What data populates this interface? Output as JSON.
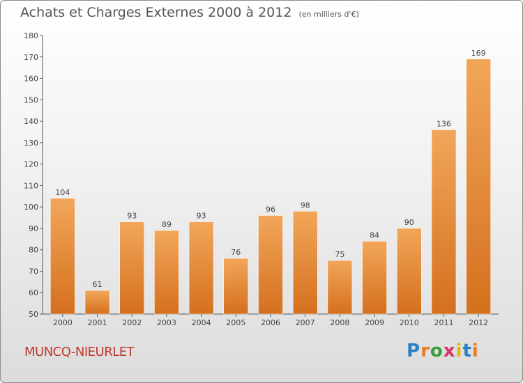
{
  "title": "Achats et Charges Externes 2000 à 2012",
  "unit": "(en milliers d'€)",
  "place": "MUNCQ-NIEURLET",
  "brand": {
    "text": "Proxiti",
    "letter_colors": [
      "#2b7fc4",
      "#e67e22",
      "#3a9d3a",
      "#d6336c",
      "#e6b800",
      "#2b7fc4",
      "#e67e22"
    ]
  },
  "colors": {
    "bar_top": "#f2a65a",
    "bar_bottom": "#d4701e",
    "axis": "#555555",
    "grid": "#cccccc"
  },
  "chart_data": {
    "type": "bar",
    "categories": [
      "2000",
      "2001",
      "2002",
      "2003",
      "2004",
      "2005",
      "2006",
      "2007",
      "2008",
      "2009",
      "2010",
      "2011",
      "2012"
    ],
    "values": [
      104,
      61,
      93,
      89,
      93,
      76,
      96,
      98,
      75,
      84,
      90,
      136,
      169
    ],
    "ylim": [
      50,
      180
    ],
    "yticks": [
      50,
      60,
      70,
      80,
      90,
      100,
      110,
      120,
      130,
      140,
      150,
      160,
      170,
      180
    ],
    "title": "Achats et Charges Externes 2000 à 2012",
    "xlabel": "",
    "ylabel": "",
    "grid": false
  }
}
